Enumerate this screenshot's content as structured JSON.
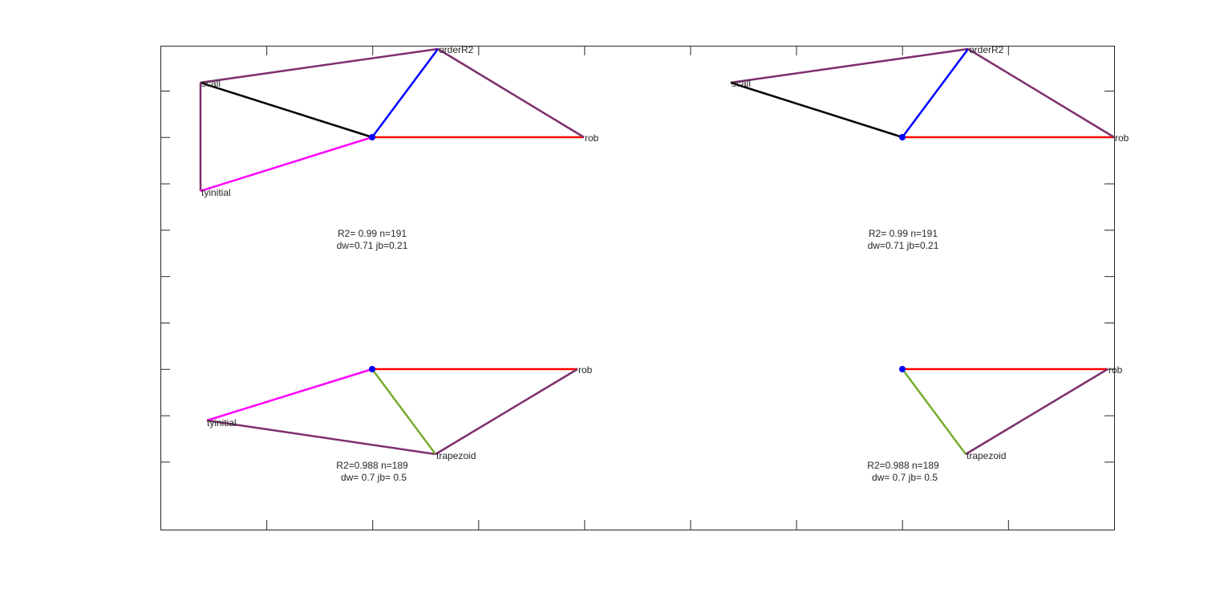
{
  "colors": {
    "axis": "#262626",
    "purple": "#7e2f6e",
    "black": "#000000",
    "blue": "#0000ff",
    "red": "#ff0000",
    "magenta": "#ff00ff",
    "green": "#77ac30",
    "center_marker": "#0000ff"
  },
  "panels": [
    {
      "nodes": {
        "scall": "scall",
        "orderR2": "orderR2",
        "rob": "rob",
        "tyinitial": "tyinitial"
      },
      "stats": [
        "R2= 0.99 n=191",
        "dw=0.71 jb=0.21"
      ]
    },
    {
      "nodes": {
        "scall": "scall",
        "orderR2": "orderR2",
        "rob": "rob"
      },
      "stats": [
        "R2= 0.99 n=191",
        "dw=0.71 jb=0.21"
      ]
    },
    {
      "nodes": {
        "rob": "rob",
        "tyinitial": "tyinitial",
        "trapezoid": "trapezoid"
      },
      "stats": [
        "R2=0.988 n=189",
        "dw= 0.7 jb= 0.5"
      ]
    },
    {
      "nodes": {
        "rob": "rob",
        "trapezoid": "trapezoid"
      },
      "stats": [
        "R2=0.988 n=189",
        "dw= 0.7 jb= 0.5"
      ]
    }
  ]
}
